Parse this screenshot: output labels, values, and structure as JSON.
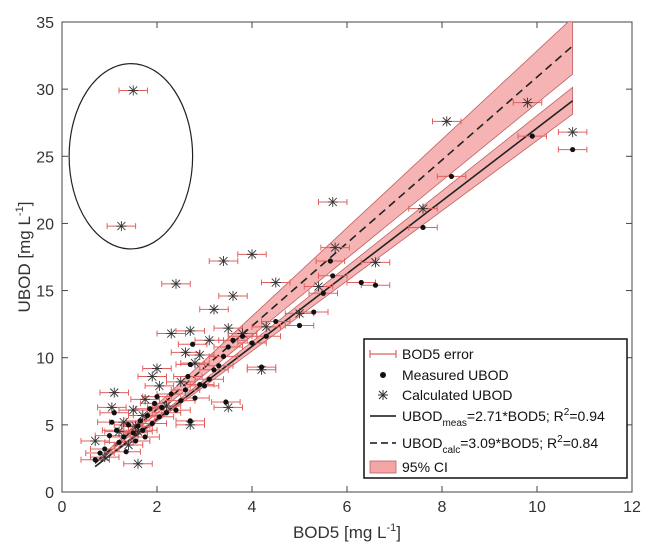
{
  "chart_data": {
    "type": "scatter",
    "xlabel": "BOD5 [mg L",
    "xlabel_sup": "-1",
    "xlabel_end": "]",
    "ylabel": "UBOD [mg L",
    "ylabel_sup": "-1",
    "ylabel_end": "]",
    "xlim": [
      0,
      12
    ],
    "ylim": [
      0,
      35
    ],
    "x_ticks": [
      "0",
      "2",
      "4",
      "6",
      "8",
      "10",
      "12"
    ],
    "y_ticks": [
      "0",
      "5",
      "10",
      "15",
      "20",
      "25",
      "30",
      "35"
    ],
    "grid": false,
    "legend_position": "bottom-right",
    "legend": {
      "error": "BOD5 error",
      "measured": "Measured UBOD",
      "calculated": "Calculated UBOD",
      "fit_meas_pre": "UBOD",
      "fit_meas_sub": "meas",
      "fit_meas_post": "=2.71*BOD5; R",
      "fit_meas_sup": "2",
      "fit_meas_end": "=0.94",
      "fit_calc_pre": "UBOD",
      "fit_calc_sub": "calc",
      "fit_calc_post": "=3.09*BOD5; R",
      "fit_calc_sup": "2",
      "fit_calc_end": "=0.84",
      "ci": "95% CI"
    },
    "colors": {
      "error_bar": "#e06060",
      "ci_fill": "#f4a6a6",
      "ci_edge": "#c06060",
      "line": "#222222"
    },
    "fit_meas": {
      "slope": 2.71,
      "r2": 0.94,
      "x_range": [
        0.7,
        10.75
      ],
      "ci_halfwidth_end": 1.0
    },
    "fit_calc": {
      "slope": 3.09,
      "r2": 0.84,
      "x_range": [
        0.7,
        10.75
      ],
      "ci_halfwidth_end": 2.1
    },
    "outlier_ellipse": {
      "cx": 1.45,
      "cy": 25.0,
      "rx": 1.3,
      "ry": 6.9
    },
    "measured": [
      [
        0.7,
        2.4
      ],
      [
        0.8,
        2.9
      ],
      [
        0.9,
        3.2
      ],
      [
        1.0,
        4.2
      ],
      [
        1.05,
        5.2
      ],
      [
        1.1,
        5.9
      ],
      [
        1.15,
        4.6
      ],
      [
        1.2,
        3.7
      ],
      [
        1.3,
        4.1
      ],
      [
        1.35,
        3.0
      ],
      [
        1.4,
        5.0
      ],
      [
        1.5,
        4.4
      ],
      [
        1.55,
        3.8
      ],
      [
        1.6,
        4.9
      ],
      [
        1.65,
        5.3
      ],
      [
        1.7,
        4.6
      ],
      [
        1.75,
        4.1
      ],
      [
        1.8,
        5.7
      ],
      [
        1.85,
        6.2
      ],
      [
        1.9,
        5.1
      ],
      [
        1.95,
        6.6
      ],
      [
        2.0,
        7.1
      ],
      [
        2.05,
        5.6
      ],
      [
        2.1,
        6.3
      ],
      [
        2.2,
        5.9
      ],
      [
        2.3,
        7.3
      ],
      [
        2.4,
        6.1
      ],
      [
        2.5,
        6.8
      ],
      [
        2.6,
        7.6
      ],
      [
        2.65,
        8.6
      ],
      [
        2.7,
        9.5
      ],
      [
        2.75,
        11.0
      ],
      [
        2.8,
        7.0
      ],
      [
        2.9,
        8.0
      ],
      [
        3.0,
        7.9
      ],
      [
        3.1,
        8.4
      ],
      [
        3.2,
        9.1
      ],
      [
        3.3,
        9.4
      ],
      [
        3.4,
        10.1
      ],
      [
        3.5,
        10.8
      ],
      [
        3.6,
        11.3
      ],
      [
        3.8,
        11.6
      ],
      [
        4.0,
        11.1
      ],
      [
        4.2,
        9.3
      ],
      [
        4.3,
        11.6
      ],
      [
        4.5,
        12.7
      ],
      [
        5.0,
        12.4
      ],
      [
        5.3,
        13.4
      ],
      [
        5.5,
        14.8
      ],
      [
        5.7,
        16.1
      ],
      [
        5.65,
        17.2
      ],
      [
        6.3,
        15.6
      ],
      [
        6.6,
        15.4
      ],
      [
        7.6,
        19.7
      ],
      [
        8.2,
        23.5
      ],
      [
        9.9,
        26.5
      ],
      [
        10.75,
        25.5
      ],
      [
        2.7,
        5.3
      ],
      [
        3.45,
        6.7
      ]
    ],
    "calculated": [
      [
        0.7,
        3.8
      ],
      [
        0.9,
        2.6
      ],
      [
        1.05,
        6.3
      ],
      [
        1.1,
        7.4
      ],
      [
        1.2,
        4.5
      ],
      [
        1.3,
        5.2
      ],
      [
        1.4,
        3.5
      ],
      [
        1.5,
        6.1
      ],
      [
        1.55,
        4.9
      ],
      [
        1.6,
        2.1
      ],
      [
        1.7,
        5.7
      ],
      [
        1.75,
        6.9
      ],
      [
        1.9,
        8.6
      ],
      [
        2.0,
        9.2
      ],
      [
        2.05,
        7.9
      ],
      [
        2.2,
        6.4
      ],
      [
        2.3,
        11.8
      ],
      [
        2.4,
        15.5
      ],
      [
        2.5,
        8.2
      ],
      [
        2.6,
        10.4
      ],
      [
        2.7,
        12.0
      ],
      [
        2.8,
        9.6
      ],
      [
        2.9,
        10.2
      ],
      [
        3.1,
        11.3
      ],
      [
        3.2,
        13.6
      ],
      [
        3.4,
        17.2
      ],
      [
        3.5,
        12.2
      ],
      [
        3.6,
        14.6
      ],
      [
        3.8,
        11.8
      ],
      [
        4.0,
        17.7
      ],
      [
        4.2,
        9.1
      ],
      [
        4.3,
        12.3
      ],
      [
        4.5,
        15.6
      ],
      [
        5.0,
        13.3
      ],
      [
        5.4,
        15.3
      ],
      [
        5.7,
        21.6
      ],
      [
        5.75,
        18.2
      ],
      [
        6.6,
        17.1
      ],
      [
        7.6,
        21.1
      ],
      [
        8.1,
        27.6
      ],
      [
        9.8,
        29.0
      ],
      [
        10.75,
        26.8
      ],
      [
        1.5,
        29.9
      ],
      [
        1.25,
        19.8
      ],
      [
        2.7,
        5.0
      ],
      [
        3.5,
        6.3
      ],
      [
        1.6,
        4.5
      ]
    ],
    "error_half_width": 0.3
  }
}
